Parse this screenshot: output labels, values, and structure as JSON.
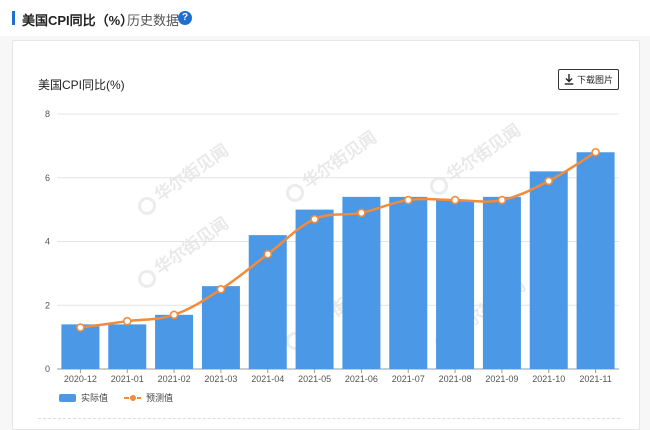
{
  "header": {
    "title": "美国CPI同比（%）",
    "history_label": "历史数据",
    "help_symbol": "?"
  },
  "chart_header": {
    "title": "美国CPI同比(%)",
    "download_label": "下载图片"
  },
  "watermark": {
    "text": "华尔街见闻"
  },
  "colors": {
    "bar": "#4a98e6",
    "line": "#f08c3c",
    "accent": "#1f6fd1"
  },
  "chart_data": {
    "type": "bar",
    "categories": [
      "2020-12",
      "2021-01",
      "2021-02",
      "2021-03",
      "2021-04",
      "2021-05",
      "2021-06",
      "2021-07",
      "2021-08",
      "2021-09",
      "2021-10",
      "2021-11"
    ],
    "series": [
      {
        "name": "实际值",
        "type": "bar",
        "values": [
          1.4,
          1.4,
          1.7,
          2.6,
          4.2,
          5.0,
          5.4,
          5.4,
          5.3,
          5.4,
          6.2,
          6.8
        ]
      },
      {
        "name": "预测值",
        "type": "line",
        "values": [
          1.3,
          1.5,
          1.7,
          2.5,
          3.6,
          4.7,
          4.9,
          5.3,
          5.3,
          5.3,
          5.9,
          6.8
        ]
      }
    ],
    "yticks": [
      0,
      2,
      4,
      6,
      8
    ],
    "ylim": [
      0,
      8
    ],
    "grid": true,
    "legend_position": "bottom-left"
  }
}
